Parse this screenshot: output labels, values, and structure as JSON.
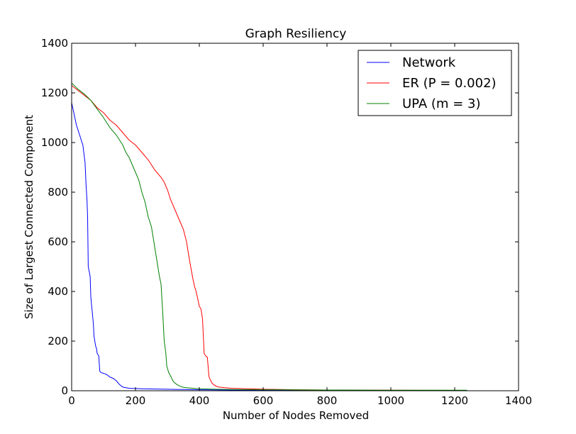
{
  "chart_data": {
    "type": "line",
    "title": "Graph Resiliency",
    "xlabel": "Number of Nodes Removed",
    "ylabel": "Size of Largest Connected Component",
    "xlim": [
      0,
      1400
    ],
    "ylim": [
      0,
      1400
    ],
    "xticks": [
      "0",
      "200",
      "400",
      "600",
      "800",
      "1000",
      "1200",
      "1400"
    ],
    "yticks": [
      "0",
      "200",
      "400",
      "600",
      "800",
      "1000",
      "1200",
      "1400"
    ],
    "grid": false,
    "legend_position": "top-right",
    "series": [
      {
        "name": "Network",
        "color": "#0000ff",
        "x": [
          0,
          5,
          10,
          15,
          20,
          25,
          30,
          35,
          40,
          42,
          45,
          48,
          50,
          52,
          55,
          58,
          60,
          62,
          65,
          68,
          70,
          75,
          78,
          80,
          85,
          88,
          90,
          95,
          100,
          105,
          110,
          115,
          120,
          130,
          140,
          150,
          160,
          170,
          180,
          200,
          220,
          250,
          300,
          400,
          500,
          600,
          800,
          1000,
          1239
        ],
        "y": [
          1160,
          1130,
          1100,
          1070,
          1050,
          1030,
          1010,
          990,
          940,
          920,
          830,
          770,
          700,
          500,
          480,
          460,
          380,
          350,
          310,
          270,
          220,
          180,
          170,
          150,
          140,
          80,
          75,
          72,
          70,
          68,
          65,
          60,
          55,
          50,
          40,
          25,
          15,
          12,
          10,
          9,
          8,
          7,
          6,
          4,
          3,
          2,
          2,
          1,
          1
        ]
      },
      {
        "name": "ER (P = 0.002)",
        "color": "#ff0000",
        "x": [
          0,
          20,
          40,
          60,
          80,
          100,
          120,
          140,
          160,
          180,
          200,
          220,
          240,
          260,
          280,
          290,
          300,
          310,
          320,
          330,
          340,
          350,
          360,
          370,
          380,
          385,
          390,
          395,
          400,
          405,
          410,
          415,
          420,
          425,
          430,
          432,
          440,
          450,
          460,
          480,
          500,
          550,
          600,
          700,
          800,
          1000,
          1239
        ],
        "y": [
          1230,
          1210,
          1190,
          1170,
          1140,
          1120,
          1090,
          1070,
          1040,
          1010,
          990,
          960,
          930,
          890,
          860,
          840,
          810,
          770,
          740,
          710,
          680,
          650,
          600,
          520,
          450,
          420,
          400,
          370,
          340,
          330,
          290,
          150,
          140,
          135,
          60,
          50,
          30,
          20,
          15,
          12,
          10,
          8,
          6,
          4,
          3,
          2,
          1
        ]
      },
      {
        "name": "UPA (m = 3)",
        "color": "#008000",
        "x": [
          0,
          20,
          40,
          60,
          80,
          100,
          120,
          140,
          160,
          170,
          180,
          190,
          200,
          210,
          220,
          230,
          240,
          245,
          250,
          255,
          260,
          265,
          270,
          275,
          280,
          285,
          290,
          295,
          298,
          300,
          305,
          310,
          315,
          320,
          330,
          340,
          350,
          360,
          380,
          400,
          450,
          500,
          600,
          800,
          1000,
          1239
        ],
        "y": [
          1240,
          1215,
          1195,
          1170,
          1135,
          1100,
          1060,
          1030,
          990,
          960,
          940,
          910,
          880,
          850,
          800,
          760,
          700,
          680,
          660,
          620,
          580,
          540,
          500,
          460,
          430,
          320,
          200,
          150,
          100,
          90,
          70,
          60,
          45,
          35,
          25,
          18,
          14,
          12,
          10,
          8,
          6,
          5,
          4,
          3,
          2,
          2
        ]
      }
    ]
  }
}
